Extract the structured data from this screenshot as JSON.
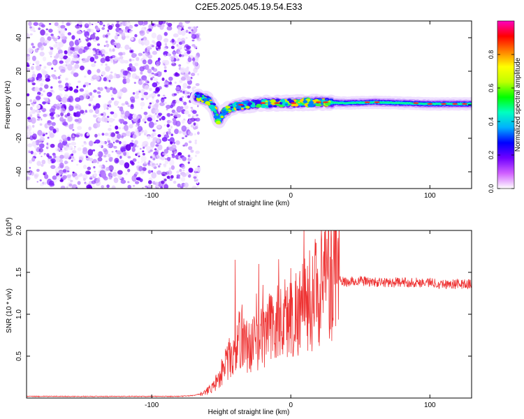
{
  "title": "C2E5.2025.045.19.54.E33",
  "chart_data": [
    {
      "type": "heatmap",
      "xlabel": "Height of straight line (km)",
      "ylabel": "Frequency (Hz)",
      "xlim": [
        -190,
        130
      ],
      "ylim": [
        -50,
        50
      ],
      "xticks": [
        -100,
        0,
        100
      ],
      "yticks": [
        -40,
        -20,
        0,
        20,
        40
      ],
      "grid": false,
      "noise_region_x": [
        -190,
        -68
      ],
      "band_center_hz": [
        {
          "x": -68,
          "y": 5
        },
        {
          "x": -60,
          "y": 3
        },
        {
          "x": -55,
          "y": -2
        },
        {
          "x": -52,
          "y": -10
        },
        {
          "x": -48,
          "y": -4
        },
        {
          "x": -40,
          "y": -1
        },
        {
          "x": -30,
          "y": 0
        },
        {
          "x": -20,
          "y": 1
        },
        {
          "x": -10,
          "y": 1
        },
        {
          "x": 0,
          "y": 1
        },
        {
          "x": 20,
          "y": 1.5
        },
        {
          "x": 40,
          "y": 1
        },
        {
          "x": 60,
          "y": 1.5
        },
        {
          "x": 80,
          "y": 1
        },
        {
          "x": 100,
          "y": 0.5
        },
        {
          "x": 130,
          "y": 0.5
        }
      ],
      "colorbar": {
        "label": "Normalized spectral amplitude",
        "ticks": [
          0.0,
          0.2,
          0.4,
          0.6,
          0.8
        ],
        "range": [
          0,
          1
        ],
        "colormap": [
          "#ffffff",
          "#d060ff",
          "#7000ff",
          "#0000ff",
          "#00b0ff",
          "#00ffc0",
          "#00ff00",
          "#c0ff00",
          "#ffff00",
          "#ff8000",
          "#ff0000",
          "#ff00c0"
        ]
      }
    },
    {
      "type": "line",
      "xlabel": "Height of straight line (km)",
      "ylabel": "SNR (10 * v/v)",
      "y_scale_label": "(x10",
      "y_scale_exponent": "4",
      "xlim": [
        -190,
        130
      ],
      "ylim": [
        0,
        2.0
      ],
      "xticks": [
        -100,
        0,
        100
      ],
      "yticks": [
        0.5,
        1.0,
        1.5,
        2.0
      ],
      "ytick_labels": [
        "0.5",
        "1.0",
        "1.5",
        "2.0"
      ],
      "grid": false,
      "series": [
        {
          "color": "#ee3333",
          "x": [
            -190,
            -160,
            -130,
            -100,
            -80,
            -70,
            -62,
            -55,
            -50,
            -45,
            -40,
            -35,
            -30,
            -25,
            -20,
            -15,
            -10,
            -5,
            0,
            5,
            10,
            15,
            20,
            25,
            30,
            35,
            40,
            50,
            60,
            70,
            80,
            90,
            100,
            110,
            120,
            130
          ],
          "y": [
            0.02,
            0.02,
            0.02,
            0.02,
            0.02,
            0.03,
            0.06,
            0.15,
            0.3,
            0.45,
            0.6,
            0.75,
            0.6,
            0.7,
            0.75,
            0.85,
            0.9,
            0.95,
            0.95,
            1.05,
            1.1,
            1.2,
            1.3,
            1.35,
            1.4,
            1.4,
            1.38,
            1.4,
            1.38,
            1.38,
            1.38,
            1.38,
            1.38,
            1.36,
            1.36,
            1.36
          ],
          "spikes": [
            {
              "x": -40,
              "y": 1.65
            },
            {
              "x": -23,
              "y": 1.6
            },
            {
              "x": -20,
              "y": 1.35
            },
            {
              "x": 0,
              "y": 1.55
            },
            {
              "x": 18,
              "y": 1.85
            },
            {
              "x": 22,
              "y": 2.0
            },
            {
              "x": 26,
              "y": 1.9
            }
          ]
        }
      ]
    }
  ]
}
